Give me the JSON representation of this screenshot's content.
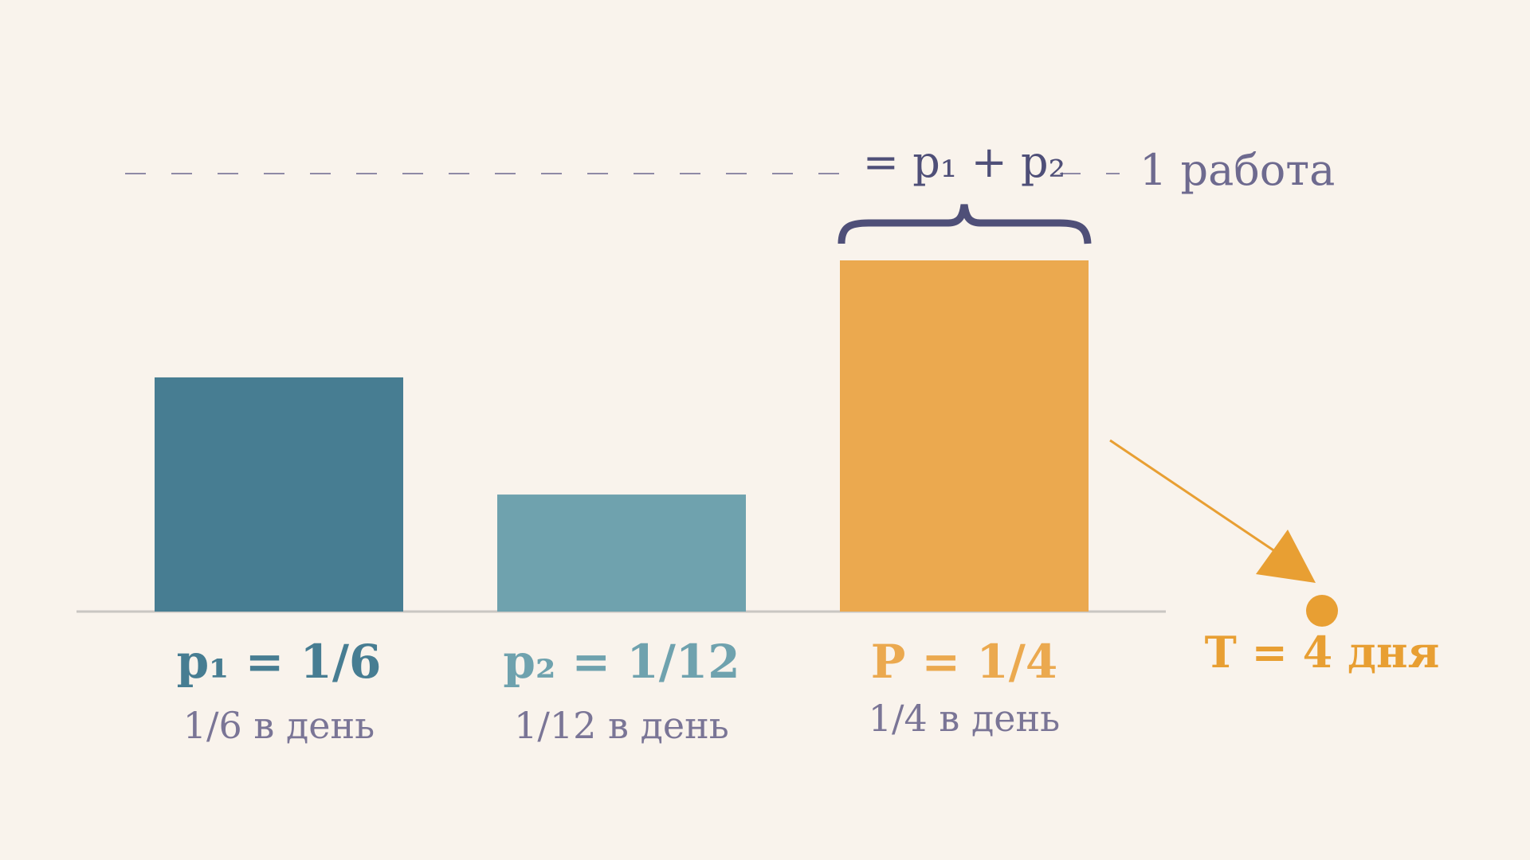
{
  "chart_data": {
    "type": "bar",
    "categories": [
      "p₁ = 1/6",
      "p₂ = 1/12",
      "P = 1/4"
    ],
    "values": [
      0.1667,
      0.0833,
      0.25
    ],
    "value_labels": [
      "1/6 в день",
      "1/12 в день",
      "1/4 в день"
    ],
    "colors": [
      "#477d92",
      "#6fa2ae",
      "#eba94f"
    ],
    "ylim": [
      0,
      0.25
    ],
    "annotations": {
      "sum": "= p₁ + p₂",
      "whole": "1 работа",
      "result": "T = 4 дня"
    }
  }
}
